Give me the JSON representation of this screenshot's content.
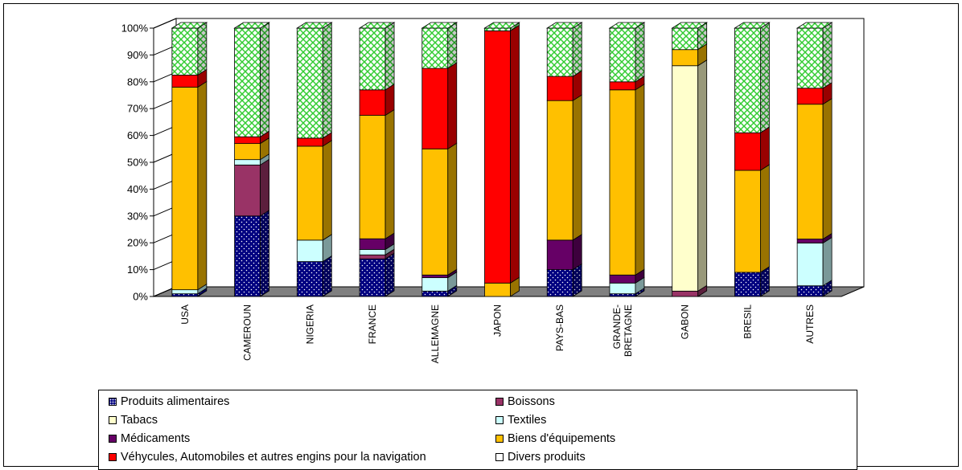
{
  "chart_data": {
    "type": "bar",
    "stacked": "percent",
    "three_d": true,
    "categories": [
      "USA",
      "CAMEROUN",
      "NIGERIA",
      "FRANCE",
      "ALLEMAGNE",
      "JAPON",
      "PAYS-BAS",
      "GRANDE-\nBRETAGNE",
      "GABON",
      "BRESIL",
      "AUTRES"
    ],
    "y_ticks": [
      "0%",
      "10%",
      "20%",
      "30%",
      "40%",
      "50%",
      "60%",
      "70%",
      "80%",
      "90%",
      "100%"
    ],
    "ylim": [
      0,
      100
    ],
    "grid": false,
    "legend_position": "bottom",
    "series": [
      {
        "name": "Produits alimentaires",
        "color": "#000080",
        "pattern": "dots",
        "values": [
          1,
          30,
          13,
          14,
          2,
          0,
          10,
          1,
          0,
          9,
          4
        ]
      },
      {
        "name": "Boissons",
        "color": "#993366",
        "pattern": "solid",
        "values": [
          0,
          19,
          0,
          1.5,
          0,
          0,
          0,
          0,
          2,
          0,
          0
        ]
      },
      {
        "name": "Tabacs",
        "color": "#FFFFCC",
        "pattern": "solid",
        "values": [
          0,
          0,
          0,
          0,
          0,
          0,
          0,
          0,
          84,
          0,
          0
        ]
      },
      {
        "name": "Textiles",
        "color": "#CCFFFF",
        "pattern": "solid",
        "values": [
          1.5,
          2,
          8,
          2,
          5,
          0,
          0,
          4,
          0,
          0,
          16
        ]
      },
      {
        "name": "Médicaments",
        "color": "#660066",
        "pattern": "solid",
        "values": [
          0,
          0,
          0,
          4,
          1,
          0,
          11,
          3,
          0,
          0,
          1.5
        ]
      },
      {
        "name": "Biens d'équipements",
        "color": "#FFC000",
        "pattern": "solid",
        "values": [
          75.5,
          6,
          35,
          46,
          47,
          5,
          52,
          69,
          6,
          38,
          50.5
        ]
      },
      {
        "name": "Véhycules, Automobiles et autres engins pour la navigation",
        "color": "#FF0000",
        "pattern": "solid",
        "values": [
          4.5,
          2.5,
          3,
          9.5,
          30,
          94,
          9,
          3,
          0,
          14,
          6
        ]
      },
      {
        "name": "Divers produits",
        "color": "#FFFFFF",
        "pattern": "green-lattice",
        "values": [
          17.5,
          40.5,
          41,
          23,
          15,
          1,
          18,
          20,
          8,
          39,
          22.5
        ]
      }
    ]
  }
}
